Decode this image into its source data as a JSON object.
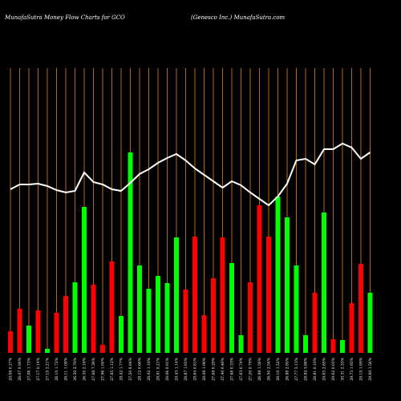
{
  "chart_data": {
    "type": "bar",
    "title": "MunafaSutra  Money Flow  Charts for GCO",
    "subtitle": "(Genesco  Inc.) MunafaSutra.com",
    "categories": [
      "20.08 0.27%",
      "26.07 0.90%",
      "27.08 1.73%",
      "27.17 0.14%",
      "27.15 2.21%",
      "26.15 1.72%",
      "26.11 1.08%",
      "26.50 2.76%",
      "26.35 2.18%",
      "27.68 7.36%",
      "27.96 1.00%",
      "27.85 1.12%",
      "28.42 1.77%",
      "27.50 8.84%",
      "28.12 0.66%",
      "28.42 1.19%",
      "28.91 0.21%",
      "29.06 0.91%",
      "29.43 1.14%",
      "28.87 1.93%",
      "28.64 0.81%",
      "28.08 1.96%",
      "27.68 0.29%",
      "27.40 0.46%",
      "27.68 0.33%",
      "27.63 0.74%",
      "27.20 0.79%",
      "26.98 1.56%",
      "26.50 2.54%",
      "26.10 1.52%",
      "26.88 2.95%",
      "27.77 3.13%",
      "28.84 3.86%",
      "28.81 0.10%",
      "29.63 2.85%",
      "29.62 0.03%",
      "30.31 2.33%",
      "29.73 1.95%",
      "29.15 1.89%",
      "29.60 1.56%"
    ],
    "values": [
      27,
      55,
      34,
      53,
      5,
      50,
      71,
      88,
      182,
      85,
      10,
      114,
      46,
      250,
      109,
      80,
      96,
      87,
      144,
      79,
      145,
      47,
      93,
      144,
      112,
      22,
      88,
      184,
      145,
      195,
      169,
      109,
      22,
      75,
      175,
      17,
      16,
      62,
      111,
      75
    ],
    "colors": [
      "red",
      "red",
      "lime",
      "red",
      "lime",
      "red",
      "red",
      "lime",
      "lime",
      "red",
      "red",
      "red",
      "lime",
      "lime",
      "lime",
      "lime",
      "lime",
      "lime",
      "lime",
      "red",
      "red",
      "red",
      "red",
      "red",
      "lime",
      "lime",
      "red",
      "red",
      "red",
      "lime",
      "lime",
      "lime",
      "lime",
      "red",
      "lime",
      "red",
      "lime",
      "red",
      "red",
      "lime"
    ],
    "line": {
      "color": "white",
      "values": [
        204,
        210,
        210,
        211,
        208,
        203,
        200,
        202,
        225,
        213,
        210,
        204,
        202,
        212,
        223,
        229,
        237,
        243,
        248,
        240,
        230,
        222,
        214,
        206,
        214,
        209,
        200,
        192,
        184,
        195,
        211,
        240,
        242,
        235,
        254,
        254,
        261,
        256,
        242,
        250
      ]
    }
  }
}
